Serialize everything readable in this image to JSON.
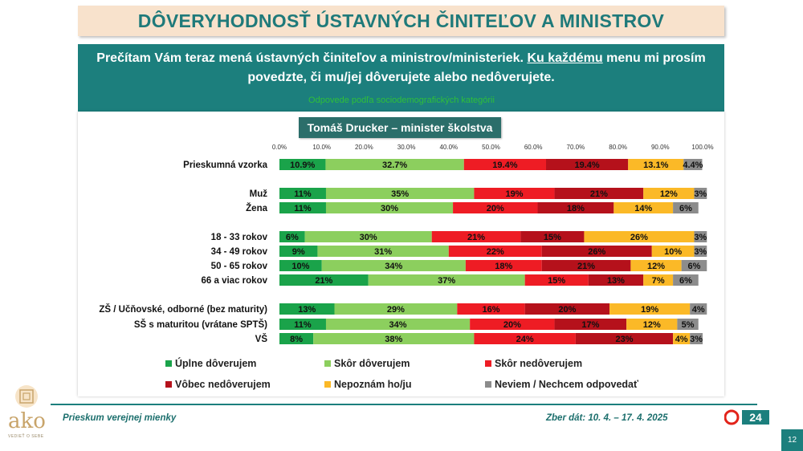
{
  "header": {
    "title": "DÔVERYHODNOSŤ ÚSTAVNÝCH ČINITEĽOV A MINISTROV",
    "question_part1": "Prečítam Vám teraz mená ústavných činiteľov a ministrov/ministeriek. ",
    "question_underlined": "Ku každému",
    "question_part2": " menu mi prosím povedzte, či mu/jej dôverujete alebo nedôverujete.",
    "subtitle": "Odpovede podľa sociodemografických kategórii",
    "person": "Tomáš Drucker – minister školstva"
  },
  "chart_data": {
    "type": "bar",
    "orientation": "horizontal",
    "stacked": true,
    "xlim": [
      0,
      100
    ],
    "xticks": [
      "0.0%",
      "10.0%",
      "20.0%",
      "30.0%",
      "40.0%",
      "50.0%",
      "60.0%",
      "70.0%",
      "80.0%",
      "90.0%",
      "100.0%"
    ],
    "categories": [
      "Prieskumná vzorka",
      "Muž",
      "Žena",
      "18 - 33 rokov",
      "34 - 49 rokov",
      "50 - 65 rokov",
      "66 a viac rokov",
      "ZŠ / Učňovské, odborné (bez maturity)",
      "SŠ s maturitou (vrátane SPTŠ)",
      "VŠ"
    ],
    "series": [
      {
        "name": "Úplne dôverujem",
        "color": "#1aa34a",
        "values": [
          10.9,
          11,
          11,
          6,
          9,
          10,
          21,
          13,
          11,
          8
        ],
        "labels": [
          "10.9%",
          "11%",
          "11%",
          "6%",
          "9%",
          "10%",
          "21%",
          "13%",
          "11%",
          "8%"
        ]
      },
      {
        "name": "Skôr dôverujem",
        "color": "#8ccf5e",
        "values": [
          32.7,
          35,
          30,
          30,
          31,
          34,
          37,
          29,
          34,
          38
        ],
        "labels": [
          "32.7%",
          "35%",
          "30%",
          "30%",
          "31%",
          "34%",
          "37%",
          "29%",
          "34%",
          "38%"
        ]
      },
      {
        "name": "Skôr nedôverujem",
        "color": "#ee1c24",
        "values": [
          19.4,
          19,
          20,
          21,
          22,
          18,
          15,
          16,
          20,
          24
        ],
        "labels": [
          "19.4%",
          "19%",
          "20%",
          "21%",
          "22%",
          "18%",
          "15%",
          "16%",
          "20%",
          "24%"
        ]
      },
      {
        "name": "Vôbec nedôverujem",
        "color": "#b5111b",
        "values": [
          19.4,
          21,
          18,
          15,
          26,
          21,
          13,
          20,
          17,
          23
        ],
        "labels": [
          "19.4%",
          "21%",
          "18%",
          "15%",
          "26%",
          "21%",
          "13%",
          "20%",
          "17%",
          "23%"
        ]
      },
      {
        "name": "Nepoznám ho/ju",
        "color": "#fbb927",
        "values": [
          13.1,
          12,
          14,
          26,
          10,
          12,
          7,
          19,
          12,
          4
        ],
        "labels": [
          "13.1%",
          "12%",
          "14%",
          "26%",
          "10%",
          "12%",
          "7%",
          "19%",
          "12%",
          "4%"
        ]
      },
      {
        "name": "Neviem / Nechcem odpovedať",
        "color": "#8c8c8c",
        "values": [
          4.4,
          3,
          6,
          3,
          3,
          6,
          6,
          4,
          5,
          3
        ],
        "labels": [
          "4.4%",
          "3%",
          "6%",
          "3%",
          "3%",
          "6%",
          "6%",
          "4%",
          "5%",
          "3%"
        ]
      }
    ]
  },
  "footer": {
    "left": "Prieskum verejnej mienky",
    "right": "Zber dát: 10. 4. – 17. 4. 2025",
    "logo_text": "ako",
    "logo_tagline": "VEDIEŤ O SEBE",
    "tv_logo": "24",
    "page_number": "12"
  }
}
